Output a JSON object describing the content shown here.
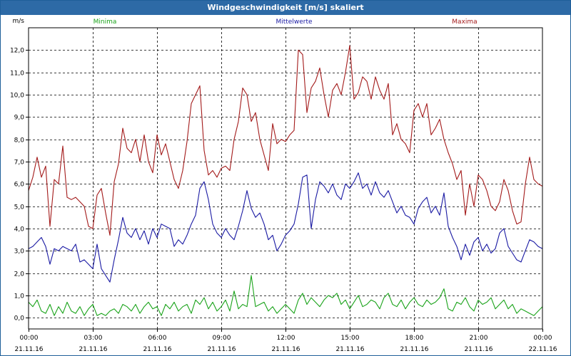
{
  "window": {
    "title": "Windgeschwindigkeit [m/s] skaliert"
  },
  "chart_data": {
    "type": "line",
    "title": "Windgeschwindigkeit [m/s] skaliert",
    "ylabel": "m/s",
    "xlabel": "",
    "ylim": [
      -0.5,
      13.0
    ],
    "xlim": [
      0,
      24
    ],
    "grid": true,
    "legend_position": "top",
    "y_ticks": [
      "0,0",
      "1,0",
      "2,0",
      "3,0",
      "4,0",
      "5,0",
      "6,0",
      "7,0",
      "8,0",
      "9,0",
      "10,0",
      "11,0",
      "12,0"
    ],
    "x_ticks": [
      {
        "time": "00:00",
        "date": "21.11.16"
      },
      {
        "time": "03:00",
        "date": "21.11.16"
      },
      {
        "time": "06:00",
        "date": "21.11.16"
      },
      {
        "time": "09:00",
        "date": "21.11.16"
      },
      {
        "time": "12:00",
        "date": "21.11.16"
      },
      {
        "time": "15:00",
        "date": "21.11.16"
      },
      {
        "time": "18:00",
        "date": "21.11.16"
      },
      {
        "time": "21:00",
        "date": "21.11.16"
      },
      {
        "time": "00:00",
        "date": "22.11.16"
      }
    ],
    "series": [
      {
        "name": "Minima",
        "color": "#1aa31a",
        "x": [
          0,
          0.2,
          0.4,
          0.6,
          0.8,
          1.0,
          1.2,
          1.4,
          1.6,
          1.8,
          2.0,
          2.2,
          2.4,
          2.6,
          2.8,
          3.0,
          3.2,
          3.4,
          3.6,
          3.8,
          4.0,
          4.2,
          4.4,
          4.6,
          4.8,
          5.0,
          5.2,
          5.4,
          5.6,
          5.8,
          6.0,
          6.2,
          6.4,
          6.6,
          6.8,
          7.0,
          7.2,
          7.4,
          7.6,
          7.8,
          8.0,
          8.2,
          8.4,
          8.6,
          8.8,
          9.0,
          9.2,
          9.4,
          9.6,
          9.8,
          10.0,
          10.2,
          10.4,
          10.6,
          10.8,
          11.0,
          11.2,
          11.4,
          11.6,
          11.8,
          12.0,
          12.2,
          12.4,
          12.6,
          12.8,
          13.0,
          13.2,
          13.4,
          13.6,
          13.8,
          14.0,
          14.2,
          14.4,
          14.6,
          14.8,
          15.0,
          15.2,
          15.4,
          15.6,
          15.8,
          16.0,
          16.2,
          16.4,
          16.6,
          16.8,
          17.0,
          17.2,
          17.4,
          17.6,
          17.8,
          18.0,
          18.2,
          18.4,
          18.6,
          18.8,
          19.0,
          19.2,
          19.4,
          19.6,
          19.8,
          20.0,
          20.2,
          20.4,
          20.6,
          20.8,
          21.0,
          21.2,
          21.4,
          21.6,
          21.8,
          22.0,
          22.2,
          22.4,
          22.6,
          22.8,
          23.0,
          23.2,
          23.4,
          23.6,
          23.8,
          24.0
        ],
        "values": [
          0.7,
          0.5,
          0.8,
          0.3,
          0.2,
          0.6,
          0.1,
          0.5,
          0.2,
          0.7,
          0.3,
          0.2,
          0.5,
          0.1,
          0.4,
          0.6,
          0.1,
          0.2,
          0.1,
          0.3,
          0.4,
          0.2,
          0.6,
          0.5,
          0.3,
          0.6,
          0.2,
          0.5,
          0.7,
          0.4,
          0.5,
          0.1,
          0.6,
          0.4,
          0.7,
          0.3,
          0.5,
          0.6,
          0.2,
          0.8,
          0.6,
          0.9,
          0.4,
          0.7,
          0.3,
          0.5,
          0.8,
          0.3,
          1.2,
          0.4,
          0.6,
          0.5,
          1.9,
          0.5,
          0.6,
          0.7,
          0.3,
          0.5,
          0.2,
          0.4,
          0.6,
          0.4,
          0.2,
          0.8,
          1.1,
          0.6,
          0.9,
          0.7,
          0.5,
          0.8,
          1.0,
          0.9,
          1.1,
          0.6,
          0.8,
          0.4,
          0.7,
          1.0,
          0.5,
          0.6,
          0.8,
          0.7,
          0.4,
          0.9,
          1.1,
          0.6,
          0.5,
          0.8,
          0.4,
          0.7,
          0.9,
          0.6,
          0.5,
          0.8,
          0.6,
          0.7,
          0.9,
          1.3,
          0.4,
          0.3,
          0.7,
          0.6,
          0.9,
          0.5,
          0.3,
          0.8,
          0.6,
          0.7,
          0.9,
          0.4,
          0.6,
          0.8,
          0.4,
          0.6,
          0.2,
          0.4,
          0.3,
          0.2,
          0.1,
          0.3,
          0.5
        ]
      },
      {
        "name": "Mittelwerte",
        "color": "#1a1aa3",
        "x": [
          0,
          0.2,
          0.4,
          0.6,
          0.8,
          1.0,
          1.2,
          1.4,
          1.6,
          1.8,
          2.0,
          2.2,
          2.4,
          2.6,
          2.8,
          3.0,
          3.2,
          3.4,
          3.6,
          3.8,
          4.0,
          4.2,
          4.4,
          4.6,
          4.8,
          5.0,
          5.2,
          5.4,
          5.6,
          5.8,
          6.0,
          6.2,
          6.4,
          6.6,
          6.8,
          7.0,
          7.2,
          7.4,
          7.6,
          7.8,
          8.0,
          8.2,
          8.4,
          8.6,
          8.8,
          9.0,
          9.2,
          9.4,
          9.6,
          9.8,
          10.0,
          10.2,
          10.4,
          10.6,
          10.8,
          11.0,
          11.2,
          11.4,
          11.6,
          11.8,
          12.0,
          12.2,
          12.4,
          12.6,
          12.8,
          13.0,
          13.2,
          13.4,
          13.6,
          13.8,
          14.0,
          14.2,
          14.4,
          14.6,
          14.8,
          15.0,
          15.2,
          15.4,
          15.6,
          15.8,
          16.0,
          16.2,
          16.4,
          16.6,
          16.8,
          17.0,
          17.2,
          17.4,
          17.6,
          17.8,
          18.0,
          18.2,
          18.4,
          18.6,
          18.8,
          19.0,
          19.2,
          19.4,
          19.6,
          19.8,
          20.0,
          20.2,
          20.4,
          20.6,
          20.8,
          21.0,
          21.2,
          21.4,
          21.6,
          21.8,
          22.0,
          22.2,
          22.4,
          22.6,
          22.8,
          23.0,
          23.2,
          23.4,
          23.6,
          23.8,
          24.0
        ],
        "values": [
          3.1,
          3.2,
          3.4,
          3.6,
          3.2,
          2.4,
          3.1,
          3.0,
          3.2,
          3.1,
          3.0,
          3.3,
          2.5,
          2.6,
          2.4,
          2.2,
          3.3,
          2.2,
          1.9,
          1.6,
          2.6,
          3.5,
          4.5,
          3.8,
          3.6,
          4.0,
          3.5,
          3.9,
          3.3,
          4.0,
          3.6,
          4.2,
          4.1,
          4.0,
          3.2,
          3.5,
          3.3,
          3.7,
          4.2,
          4.6,
          5.8,
          6.1,
          5.3,
          4.2,
          3.8,
          3.6,
          4.0,
          3.7,
          3.5,
          4.1,
          4.8,
          5.7,
          4.9,
          4.5,
          4.7,
          4.2,
          3.5,
          3.7,
          3.0,
          3.3,
          3.7,
          3.9,
          4.2,
          5.1,
          6.3,
          6.4,
          4.0,
          5.3,
          6.1,
          5.9,
          5.6,
          6.0,
          5.5,
          5.3,
          6.0,
          5.8,
          6.1,
          6.5,
          5.8,
          6.0,
          5.5,
          6.1,
          5.6,
          5.4,
          5.7,
          5.2,
          4.7,
          5.0,
          4.6,
          4.5,
          4.2,
          4.9,
          5.2,
          5.4,
          4.7,
          5.0,
          4.6,
          5.6,
          4.1,
          3.6,
          3.2,
          2.6,
          3.3,
          2.8,
          3.4,
          3.6,
          3.0,
          3.3,
          2.9,
          3.1,
          3.8,
          4.0,
          3.2,
          2.9,
          2.6,
          2.5,
          3.0,
          3.5,
          3.4,
          3.2,
          3.1
        ]
      },
      {
        "name": "Maxima",
        "color": "#a31a1a",
        "x": [
          0,
          0.2,
          0.4,
          0.6,
          0.8,
          1.0,
          1.2,
          1.4,
          1.6,
          1.8,
          2.0,
          2.2,
          2.4,
          2.6,
          2.8,
          3.0,
          3.2,
          3.4,
          3.6,
          3.8,
          4.0,
          4.2,
          4.4,
          4.6,
          4.8,
          5.0,
          5.2,
          5.4,
          5.6,
          5.8,
          6.0,
          6.2,
          6.4,
          6.6,
          6.8,
          7.0,
          7.2,
          7.4,
          7.6,
          7.8,
          8.0,
          8.2,
          8.4,
          8.6,
          8.8,
          9.0,
          9.2,
          9.4,
          9.6,
          9.8,
          10.0,
          10.2,
          10.4,
          10.6,
          10.8,
          11.0,
          11.2,
          11.4,
          11.6,
          11.8,
          12.0,
          12.2,
          12.4,
          12.6,
          12.8,
          13.0,
          13.2,
          13.4,
          13.6,
          13.8,
          14.0,
          14.2,
          14.4,
          14.6,
          14.8,
          15.0,
          15.2,
          15.4,
          15.6,
          15.8,
          16.0,
          16.2,
          16.4,
          16.6,
          16.8,
          17.0,
          17.2,
          17.4,
          17.6,
          17.8,
          18.0,
          18.2,
          18.4,
          18.6,
          18.8,
          19.0,
          19.2,
          19.4,
          19.6,
          19.8,
          20.0,
          20.2,
          20.4,
          20.6,
          20.8,
          21.0,
          21.2,
          21.4,
          21.6,
          21.8,
          22.0,
          22.2,
          22.4,
          22.6,
          22.8,
          23.0,
          23.2,
          23.4,
          23.6,
          23.8,
          24.0
        ],
        "values": [
          5.7,
          6.3,
          7.2,
          6.3,
          6.8,
          4.1,
          6.2,
          6.0,
          7.7,
          5.4,
          5.3,
          5.4,
          5.2,
          5.0,
          4.1,
          4.0,
          5.5,
          5.8,
          4.7,
          3.7,
          6.1,
          6.9,
          8.5,
          7.6,
          7.4,
          8.0,
          7.0,
          8.2,
          7.0,
          6.5,
          8.2,
          7.3,
          7.8,
          7.0,
          6.2,
          5.8,
          6.6,
          7.9,
          9.6,
          10.0,
          10.4,
          7.5,
          6.4,
          6.6,
          6.3,
          6.7,
          6.8,
          6.6,
          8.0,
          8.8,
          10.3,
          10.0,
          8.8,
          9.2,
          8.0,
          7.3,
          6.6,
          8.7,
          7.8,
          8.0,
          7.9,
          8.2,
          8.4,
          12.0,
          11.8,
          9.2,
          10.3,
          10.6,
          11.2,
          10.0,
          9.0,
          10.2,
          10.5,
          10.0,
          11.0,
          12.2,
          9.8,
          10.1,
          10.8,
          10.6,
          9.8,
          10.8,
          10.2,
          9.8,
          10.5,
          8.2,
          8.7,
          8.0,
          7.8,
          7.4,
          9.3,
          9.6,
          9.0,
          9.6,
          8.2,
          8.5,
          8.9,
          8.0,
          7.4,
          6.9,
          6.2,
          6.6,
          4.6,
          6.0,
          5.0,
          6.4,
          6.2,
          5.7,
          5.0,
          4.8,
          5.2,
          6.2,
          5.7,
          4.8,
          4.2,
          4.3,
          6.0,
          7.2,
          6.2,
          6.0,
          5.9
        ]
      }
    ]
  }
}
